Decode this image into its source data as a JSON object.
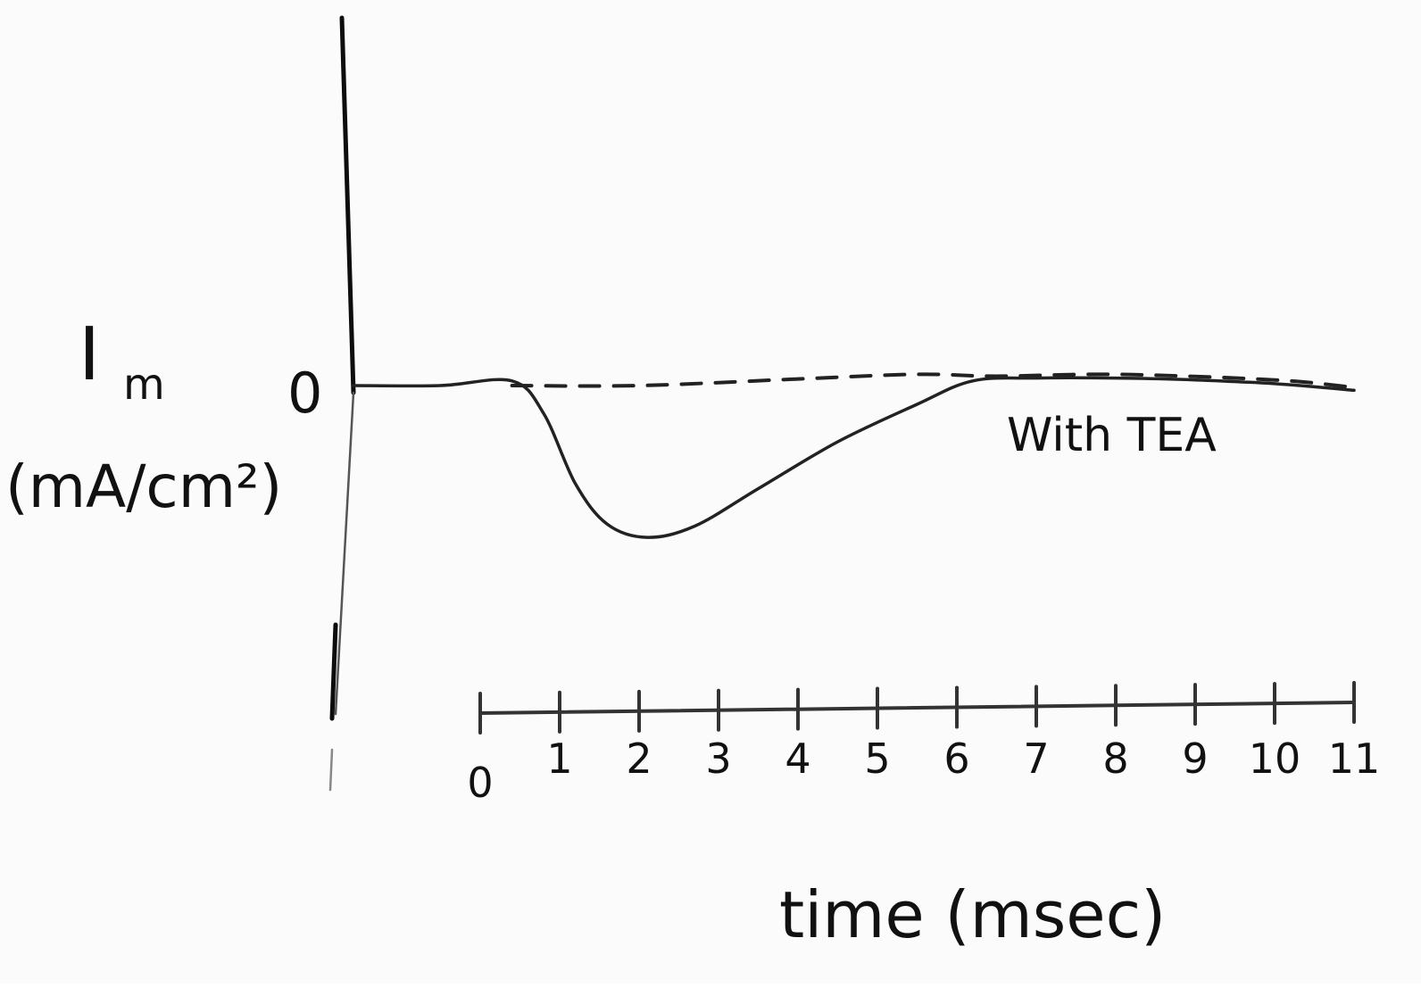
{
  "chart_data": {
    "type": "line",
    "title": "",
    "ylabel_symbol": "I",
    "ylabel_subscript": "m",
    "ylabel_units": "(mA/cm²)",
    "xlabel": "time (msec)",
    "y_zero_label": "0",
    "xlim": [
      0,
      11
    ],
    "ylim": [
      -2,
      5
    ],
    "grid": false,
    "x_ticks": [
      0,
      1,
      2,
      3,
      4,
      5,
      6,
      7,
      8,
      9,
      10,
      11
    ],
    "x_tick_labels": [
      "0",
      "1",
      "2",
      "3",
      "4",
      "5",
      "6",
      "7",
      "8",
      "9",
      "10",
      "11"
    ],
    "annotations": [
      {
        "text": "With TEA",
        "near_x": 7,
        "near_y": -0.6
      }
    ],
    "series": [
      {
        "name": "With TEA",
        "style": "solid",
        "color": "#222222",
        "x": [
          -1.6,
          -0.5,
          0.4,
          0.8,
          1.2,
          1.6,
          2.1,
          2.7,
          3.5,
          4.5,
          5.5,
          6.2,
          7.0,
          8.0,
          9.0,
          10.0,
          11.0
        ],
        "y": [
          0,
          0,
          0.05,
          -0.3,
          -1.05,
          -1.48,
          -1.62,
          -1.5,
          -1.1,
          -0.6,
          -0.2,
          0.05,
          0.08,
          0.08,
          0.06,
          0.02,
          -0.05
        ]
      },
      {
        "style": "dashed",
        "color": "#222222",
        "x": [
          0.4,
          2.0,
          4.0,
          5.5,
          6.5,
          8.0,
          10.0,
          11.0
        ],
        "y": [
          0.0,
          0.0,
          0.07,
          0.12,
          0.1,
          0.12,
          0.06,
          -0.02
        ]
      }
    ]
  }
}
